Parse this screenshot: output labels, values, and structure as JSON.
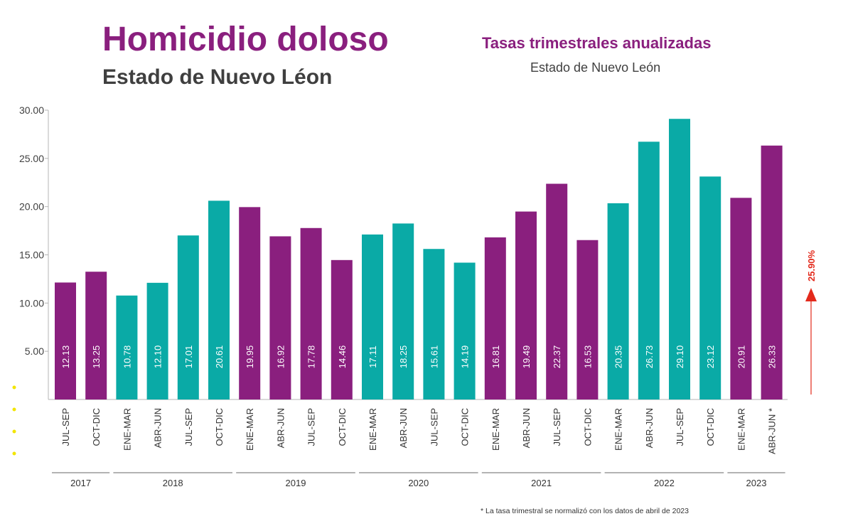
{
  "header": {
    "title": "Homicidio doloso",
    "subtitle": "Estado de Nuevo Léon",
    "right_title": "Tasas trimestrales anualizadas",
    "right_subtitle": "Estado de Nuevo León"
  },
  "footnote": "* La tasa trimestral se normalizó con los datos de abril de 2023",
  "colors": {
    "purple": "#8a1f7e",
    "teal": "#0aaaa6",
    "red": "#e32a1c"
  },
  "chart_data": {
    "type": "bar",
    "ylim": [
      0,
      30
    ],
    "yticks": [
      "30.00",
      "25.00",
      "20.00",
      "15.00",
      "10.00",
      "5.00"
    ],
    "grid": false,
    "categories": [
      "JUL-SEP",
      "OCT-DIC",
      "ENE-MAR",
      "ABR-JUN",
      "JUL-SEP",
      "OCT-DIC",
      "ENE-MAR",
      "ABR-JUN",
      "JUL-SEP",
      "OCT-DIC",
      "ENE-MAR",
      "ABR-JUN",
      "JUL-SEP",
      "OCT-DIC",
      "ENE-MAR",
      "ABR-JUN",
      "JUL-SEP",
      "OCT-DIC",
      "ENE-MAR",
      "ABR-JUN",
      "JUL-SEP",
      "OCT-DIC",
      "ENE-MAR",
      "ABR-JUN *"
    ],
    "values": [
      12.13,
      13.25,
      10.78,
      12.1,
      17.01,
      20.61,
      19.95,
      16.92,
      17.78,
      14.46,
      17.11,
      18.25,
      15.61,
      14.19,
      16.81,
      19.49,
      22.37,
      16.53,
      20.35,
      26.73,
      29.1,
      23.12,
      20.91,
      26.33
    ],
    "value_labels": [
      "12.13",
      "13.25",
      "10.78",
      "12.10",
      "17.01",
      "20.61",
      "19.95",
      "16.92",
      "17.78",
      "14.46",
      "17.11",
      "18.25",
      "15.61",
      "14.19",
      "16.81",
      "19.49",
      "22.37",
      "16.53",
      "20.35",
      "26.73",
      "29.10",
      "23.12",
      "20.91",
      "26.33"
    ],
    "bar_colors": [
      "#8a1f7e",
      "#8a1f7e",
      "#0aaaa6",
      "#0aaaa6",
      "#0aaaa6",
      "#0aaaa6",
      "#8a1f7e",
      "#8a1f7e",
      "#8a1f7e",
      "#8a1f7e",
      "#0aaaa6",
      "#0aaaa6",
      "#0aaaa6",
      "#0aaaa6",
      "#8a1f7e",
      "#8a1f7e",
      "#8a1f7e",
      "#8a1f7e",
      "#0aaaa6",
      "#0aaaa6",
      "#0aaaa6",
      "#0aaaa6",
      "#8a1f7e",
      "#8a1f7e"
    ],
    "years": [
      {
        "label": "2017",
        "from": 0,
        "to": 1
      },
      {
        "label": "2018",
        "from": 2,
        "to": 5
      },
      {
        "label": "2019",
        "from": 6,
        "to": 9
      },
      {
        "label": "2020",
        "from": 10,
        "to": 13
      },
      {
        "label": "2021",
        "from": 14,
        "to": 17
      },
      {
        "label": "2022",
        "from": 18,
        "to": 21
      },
      {
        "label": "2023",
        "from": 22,
        "to": 23
      }
    ],
    "change_annotation": "25.90%"
  }
}
